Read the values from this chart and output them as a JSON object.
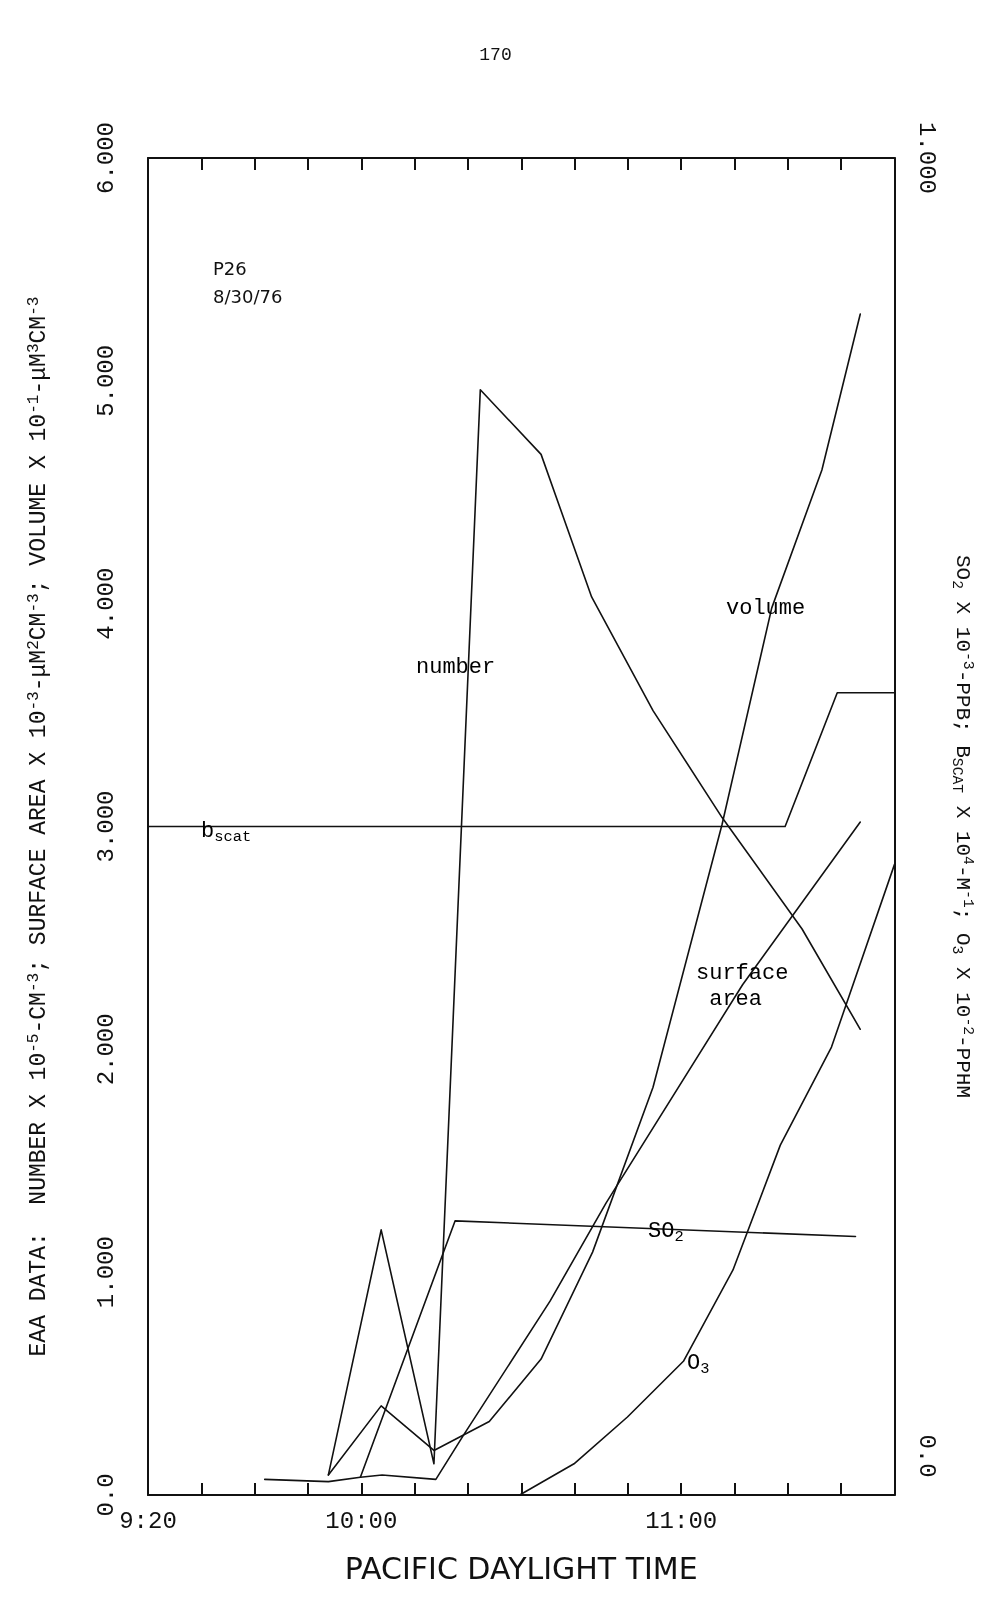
{
  "chart_data": {
    "type": "line",
    "xlabel": "PACIFIC DAYLIGHT TIME",
    "ylabel": "EAA DATA:  NUMBER X 10$^{-5}$-CM$^{-3}$; SURFACE AREA X 10$^{-3}$-μM$^{2}$CM$^{-3}$; VOLUME X 10$^{-1}$-μM$^{3}$CM$^{-3}$",
    "y2label": "SO$_{2}$ X 10$^{-3}$-PPB; B$_{SCAT}$ X 10$^{4}$-M$^{-1}$; O$_{3}$ X 10$^{-2}$-PPHM",
    "xlim": [
      9.333,
      11.667
    ],
    "xticks": [
      {
        "value": 9.333,
        "label": "9:20"
      },
      {
        "value": 9.5,
        "label": null
      },
      {
        "value": 9.6667,
        "label": null
      },
      {
        "value": 9.8333,
        "label": null
      },
      {
        "value": 10,
        "label": "10:00"
      },
      {
        "value": 10.1667,
        "label": null
      },
      {
        "value": 10.3333,
        "label": null
      },
      {
        "value": 10.5,
        "label": null
      },
      {
        "value": 10.6667,
        "label": null
      },
      {
        "value": 10.8333,
        "label": null
      },
      {
        "value": 11,
        "label": "11:00"
      },
      {
        "value": 11.1667,
        "label": null
      },
      {
        "value": 11.3333,
        "label": null
      },
      {
        "value": 11.5,
        "label": null
      },
      {
        "value": 11.667,
        "label": null
      }
    ],
    "ylim": [
      0,
      6
    ],
    "yticks": [
      {
        "value": 0,
        "label": "0.0"
      },
      {
        "value": 1,
        "label": "1.000"
      },
      {
        "value": 2,
        "label": "2.000"
      },
      {
        "value": 3,
        "label": "3.000"
      },
      {
        "value": 4,
        "label": "4.000"
      },
      {
        "value": 5,
        "label": "5.000"
      },
      {
        "value": 6,
        "label": "6.000"
      }
    ],
    "y2lim": [
      -0.03,
      1
    ],
    "y2ticks": [
      {
        "value": 0,
        "label": "0.0"
      },
      {
        "value": 1,
        "label": "1.000"
      }
    ],
    "grid": false,
    "marker": "none",
    "line_style": "solid",
    "series": [
      {
        "color": "#111111",
        "x": [
          9.897,
          10.062,
          10.227,
          10.372,
          10.562,
          10.72,
          10.912,
          11.128,
          11.378,
          11.56
        ],
        "values": [
          0.09,
          1.19,
          0.14,
          4.96,
          4.67,
          4.03,
          3.52,
          3.04,
          2.54,
          2.09
        ]
      },
      {
        "color": "#111111",
        "x": [
          9.897,
          10.062,
          10.227,
          10.4,
          10.562,
          10.723,
          10.912,
          11.128,
          11.283,
          11.44,
          11.56
        ],
        "values": [
          0.09,
          0.4,
          0.2,
          0.33,
          0.61,
          1.09,
          1.83,
          3.01,
          3.98,
          4.6,
          5.3
        ]
      },
      {
        "color": "#111111",
        "x": [
          9.698,
          9.897,
          9.997,
          10.065,
          10.233,
          10.32,
          10.59,
          10.765,
          11.192,
          11.56
        ],
        "values": [
          0.07,
          0.06,
          0.08,
          0.09,
          0.07,
          0.27,
          0.87,
          1.31,
          2.29,
          3.02
        ]
      },
      {
        "color": "#111111",
        "x": [
          9.997,
          10.293,
          11.545
        ],
        "values": [
          0.08,
          1.23,
          1.16
        ]
      },
      {
        "color": "#111111",
        "x": [
          10.495,
          10.665,
          10.832,
          11.007,
          11.162,
          11.31,
          11.47,
          11.667
        ],
        "values": [
          0,
          0.14,
          0.35,
          0.6,
          1.01,
          1.57,
          2.01,
          2.83
        ]
      },
      {
        "color": "#111111",
        "x": [
          9.333,
          11.325,
          11.488,
          11.667
        ],
        "values": [
          3.0,
          3.0,
          3.6,
          3.6
        ]
      }
    ],
    "annotations": [
      "170",
      "P26\n8/30/76",
      "number",
      "volume",
      "surface\n area",
      "SO$_{2}$",
      "O$_{3}$",
      "b$_{scat}$"
    ]
  }
}
